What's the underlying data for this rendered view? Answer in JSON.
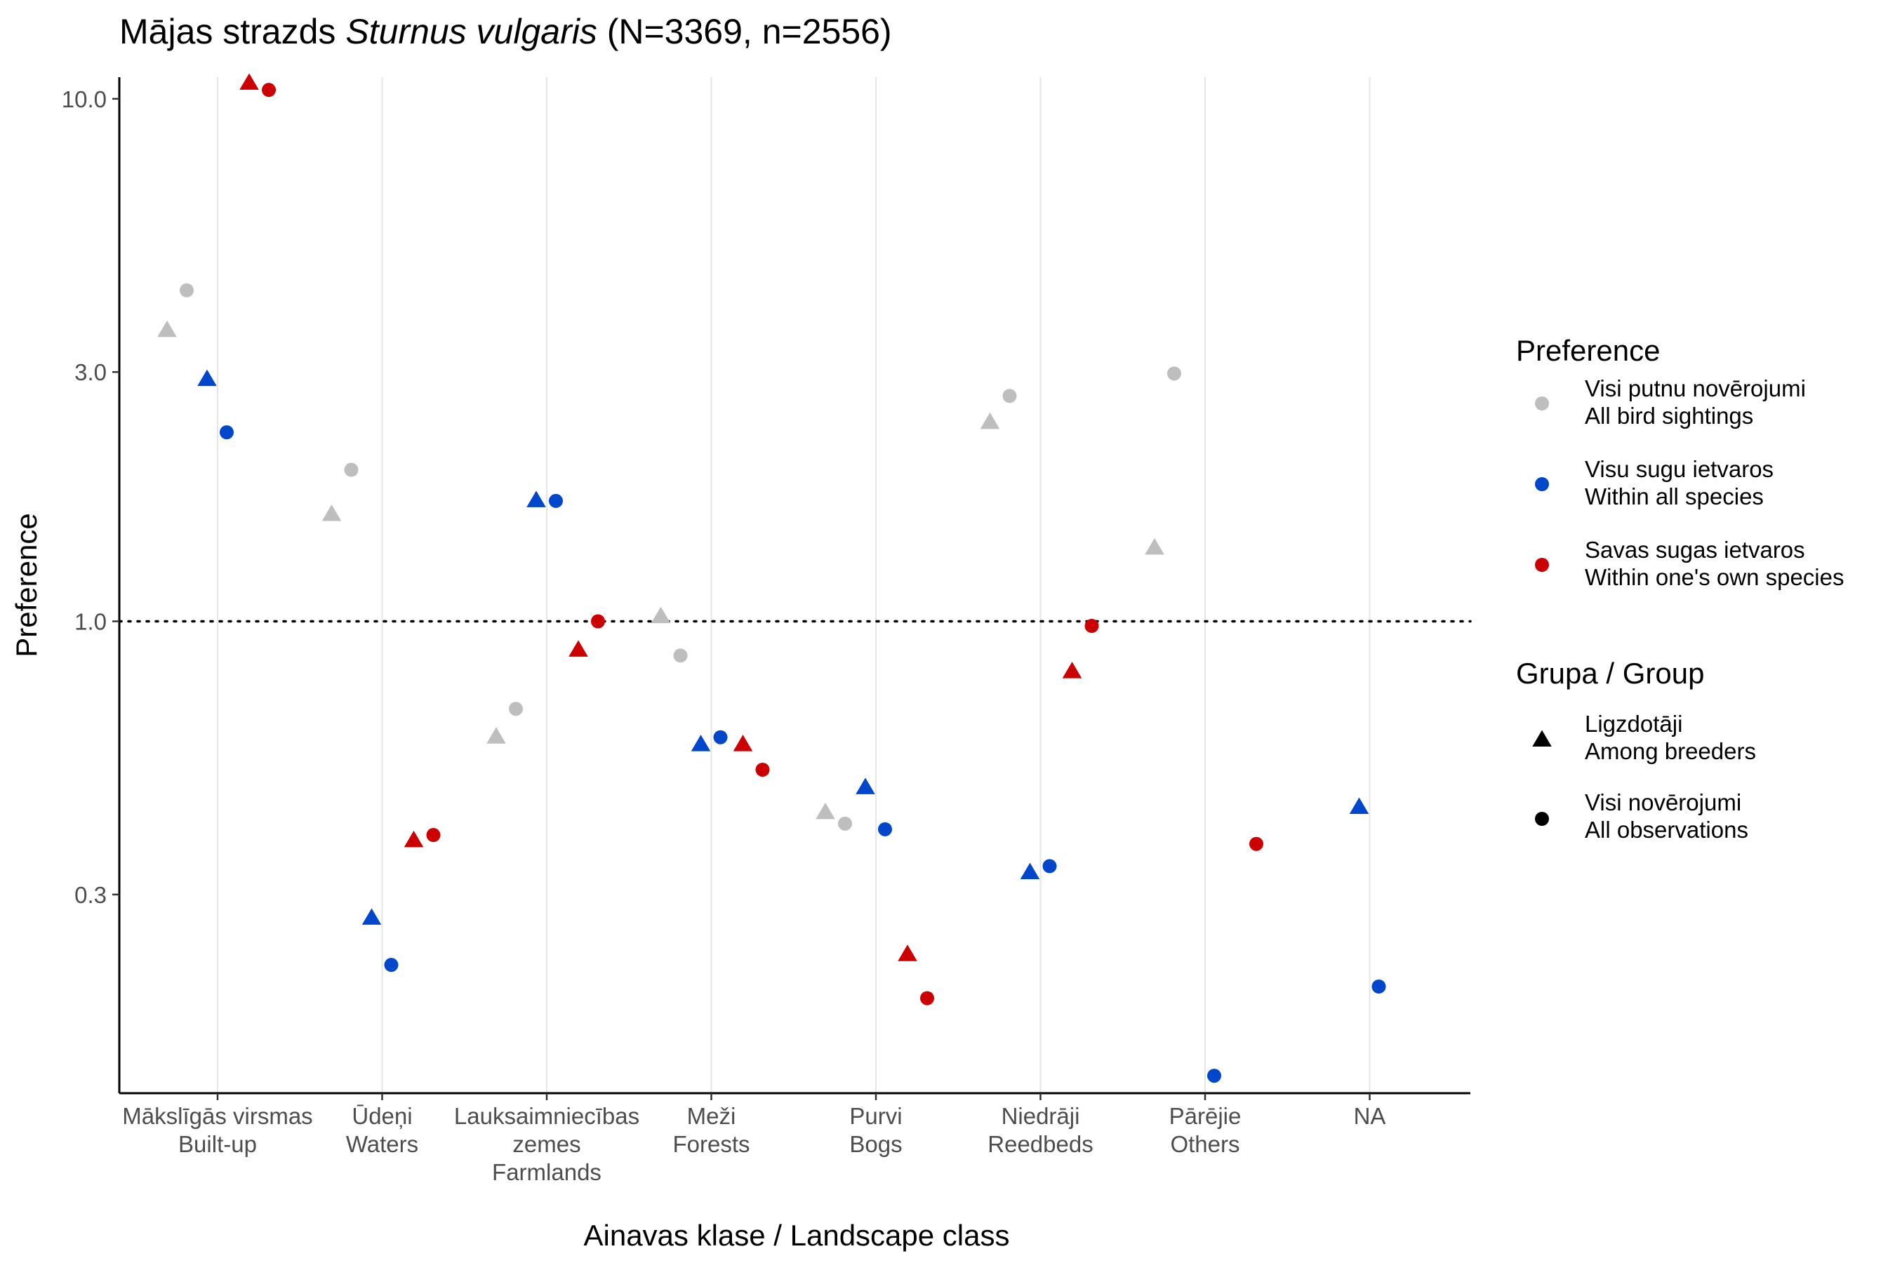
{
  "chart_data": {
    "type": "scatter",
    "title_prefix": "Mājas strazds ",
    "title_species": "Sturnus vulgaris",
    "title_suffix": " (N=3369, n=2556)",
    "xlabel": "Ainavas klase / Landscape class",
    "ylabel": "Preference",
    "y_scale": "log",
    "ylim": [
      0.125,
      11
    ],
    "y_ticks": [
      0.3,
      1.0,
      3.0,
      10.0
    ],
    "y_tick_labels": [
      "0.3",
      "1.0",
      "3.0",
      "10.0"
    ],
    "reference_line": 1.0,
    "grid": "vertical major lines only",
    "categories": [
      [
        "Mākslīgās virsmas",
        "Built-up"
      ],
      [
        "Ūdeņi",
        "Waters"
      ],
      [
        "Lauksaimniecības",
        "zemes",
        "Farmlands"
      ],
      [
        "Meži",
        "Forests"
      ],
      [
        "Purvi",
        "Bogs"
      ],
      [
        "Niedrāji",
        "Reedbeds"
      ],
      [
        "Pārējie",
        "Others"
      ],
      [
        "NA"
      ]
    ],
    "series": [
      {
        "preference": "Visi putnu novērojumi / All bird sightings",
        "group": "Ligzdotāji / Among breeders",
        "color": "#BEBEBE",
        "shape": "triangle",
        "values": [
          3.6,
          1.6,
          0.6,
          1.02,
          0.43,
          2.4,
          1.38,
          null
        ]
      },
      {
        "preference": "Visi putnu novērojumi / All bird sightings",
        "group": "Visi novērojumi / All observations",
        "color": "#BEBEBE",
        "shape": "circle",
        "values": [
          4.3,
          1.95,
          0.68,
          0.86,
          0.41,
          2.7,
          2.98,
          null
        ]
      },
      {
        "preference": "Visu sugu ietvaros / Within all species",
        "group": "Ligzdotāji / Among breeders",
        "color": "#0047CC",
        "shape": "triangle",
        "values": [
          2.9,
          0.27,
          1.7,
          0.58,
          0.48,
          0.33,
          null,
          0.44
        ]
      },
      {
        "preference": "Visu sugu ietvaros / Within all species",
        "group": "Visi novērojumi / All observations",
        "color": "#0047CC",
        "shape": "circle",
        "values": [
          2.3,
          0.22,
          1.7,
          0.6,
          0.4,
          0.34,
          0.135,
          0.2
        ]
      },
      {
        "preference": "Savas sugas ietvaros / Within one's own species",
        "group": "Ligzdotāji / Among breeders",
        "color": "#CC0000",
        "shape": "triangle",
        "values": [
          10.7,
          0.38,
          0.88,
          0.58,
          0.23,
          0.8,
          null,
          null
        ]
      },
      {
        "preference": "Savas sugas ietvaros / Within one's own species",
        "group": "Visi novērojumi / All observations",
        "color": "#CC0000",
        "shape": "circle",
        "values": [
          10.4,
          0.39,
          1.0,
          0.52,
          0.19,
          0.98,
          0.375,
          null
        ]
      }
    ],
    "legend": {
      "placement": "right",
      "preference_title": "Preference",
      "preference_items": [
        {
          "line1": "Visi putnu novērojumi",
          "line2": "All bird sightings",
          "color": "#BEBEBE"
        },
        {
          "line1": "Visu sugu ietvaros",
          "line2": "Within all species",
          "color": "#0047CC"
        },
        {
          "line1": "Savas sugas ietvaros",
          "line2": "Within one's own species",
          "color": "#CC0000"
        }
      ],
      "group_title": "Grupa / Group",
      "group_items": [
        {
          "line1": "Ligzdotāji",
          "line2": "Among breeders",
          "shape": "triangle"
        },
        {
          "line1": "Visi novērojumi",
          "line2": "All observations",
          "shape": "circle"
        }
      ]
    }
  }
}
